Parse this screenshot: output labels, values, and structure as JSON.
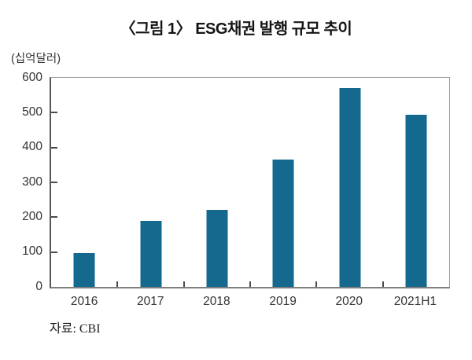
{
  "title": "〈그림 1〉 ESG채권 발행 규모 추이",
  "axis": {
    "unit_label": "(십억달러)"
  },
  "source_note": "자료: CBI",
  "colors": {
    "bar": "#15698e",
    "tick": "#4a4a4a",
    "frame": "#9b9b9b",
    "text": "#333333"
  },
  "chart_data": {
    "type": "bar",
    "title": "〈그림 1〉 ESG채권 발행 규모 추이",
    "xlabel": "",
    "ylabel": "(십억달러)",
    "categories": [
      "2016",
      "2017",
      "2018",
      "2019",
      "2020",
      "2021H1"
    ],
    "values": [
      97,
      190,
      220,
      365,
      570,
      495
    ],
    "ylim": [
      0,
      600
    ],
    "yticks": [
      0,
      100,
      200,
      300,
      400,
      500,
      600
    ],
    "grid": false,
    "legend": false,
    "source": "자료: CBI"
  }
}
